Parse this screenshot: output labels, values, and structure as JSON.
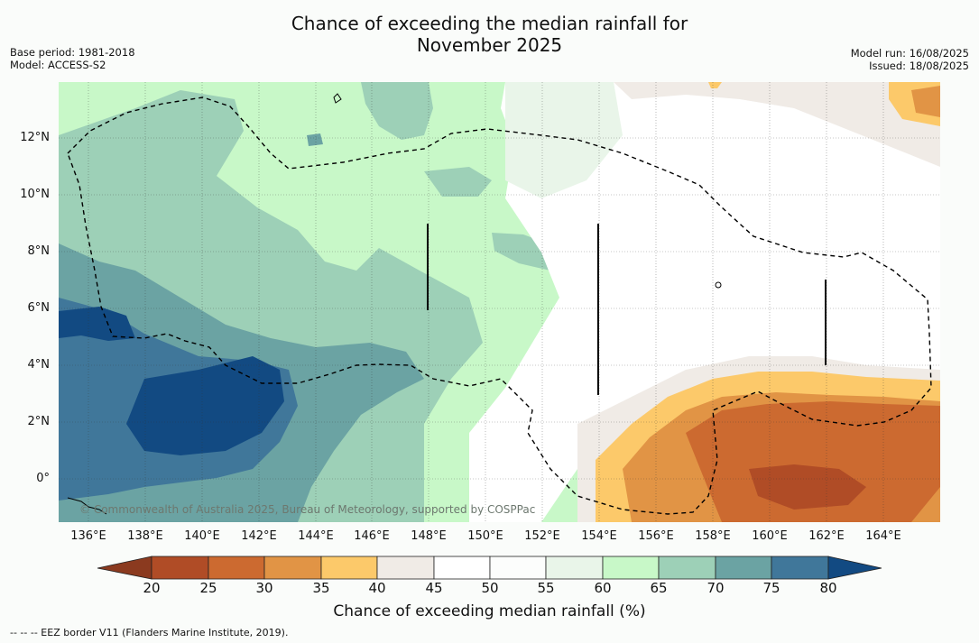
{
  "title_line1": "Chance of exceeding the median rainfall for",
  "title_line2": "November 2025",
  "base_period": "Base period: 1981-2018",
  "model": "Model: ACCESS-S2",
  "model_run": "Model run: 16/08/2025",
  "issued": "Issued: 18/08/2025",
  "lat_labels": [
    "12°N",
    "10°N",
    "8°N",
    "6°N",
    "4°N",
    "2°N",
    "0°"
  ],
  "lon_labels": [
    "136°E",
    "138°E",
    "140°E",
    "142°E",
    "144°E",
    "146°E",
    "148°E",
    "150°E",
    "152°E",
    "154°E",
    "156°E",
    "158°E",
    "160°E",
    "162°E",
    "164°E"
  ],
  "copyright": "© Commonwealth of Australia 2025, Bureau of Meteorology, supported by COSPPac",
  "colorbar": {
    "title": "Chance of exceeding median rainfall (%)",
    "ticks": [
      "20",
      "25",
      "30",
      "35",
      "40",
      "45",
      "50",
      "55",
      "60",
      "65",
      "70",
      "75",
      "80"
    ],
    "colors": [
      "#8b3a1f",
      "#b04c26",
      "#cc6a30",
      "#e19445",
      "#fcc96a",
      "#f0ebe6",
      "#ffffff",
      "#fcfdfc",
      "#e9f5e9",
      "#c8f8c8",
      "#9dd0b7",
      "#6ba3a3",
      "#40779a",
      "#124a82"
    ]
  },
  "footnote": "-- -- -- EEZ border V11 (Flanders Marine Institute, 2019)."
}
